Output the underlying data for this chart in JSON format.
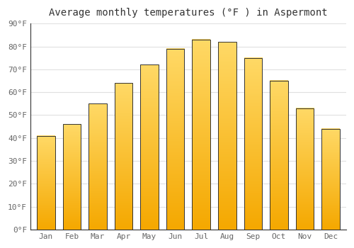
{
  "months": [
    "Jan",
    "Feb",
    "Mar",
    "Apr",
    "May",
    "Jun",
    "Jul",
    "Aug",
    "Sep",
    "Oct",
    "Nov",
    "Dec"
  ],
  "values": [
    41,
    46,
    55,
    64,
    72,
    79,
    83,
    82,
    75,
    65,
    53,
    44
  ],
  "bar_color_bottom": "#F5A800",
  "bar_color_top": "#FFD966",
  "bar_edge_color": "#333333",
  "title": "Average monthly temperatures (°F ) in Aspermont",
  "ylim": [
    0,
    90
  ],
  "yticks": [
    0,
    10,
    20,
    30,
    40,
    50,
    60,
    70,
    80,
    90
  ],
  "ytick_labels": [
    "0°F",
    "10°F",
    "20°F",
    "30°F",
    "40°F",
    "50°F",
    "60°F",
    "70°F",
    "80°F",
    "90°F"
  ],
  "background_color": "#ffffff",
  "plot_bg_color": "#ffffff",
  "title_fontsize": 10,
  "tick_fontsize": 8,
  "grid_color": "#e0e0e0",
  "tick_color": "#666666"
}
